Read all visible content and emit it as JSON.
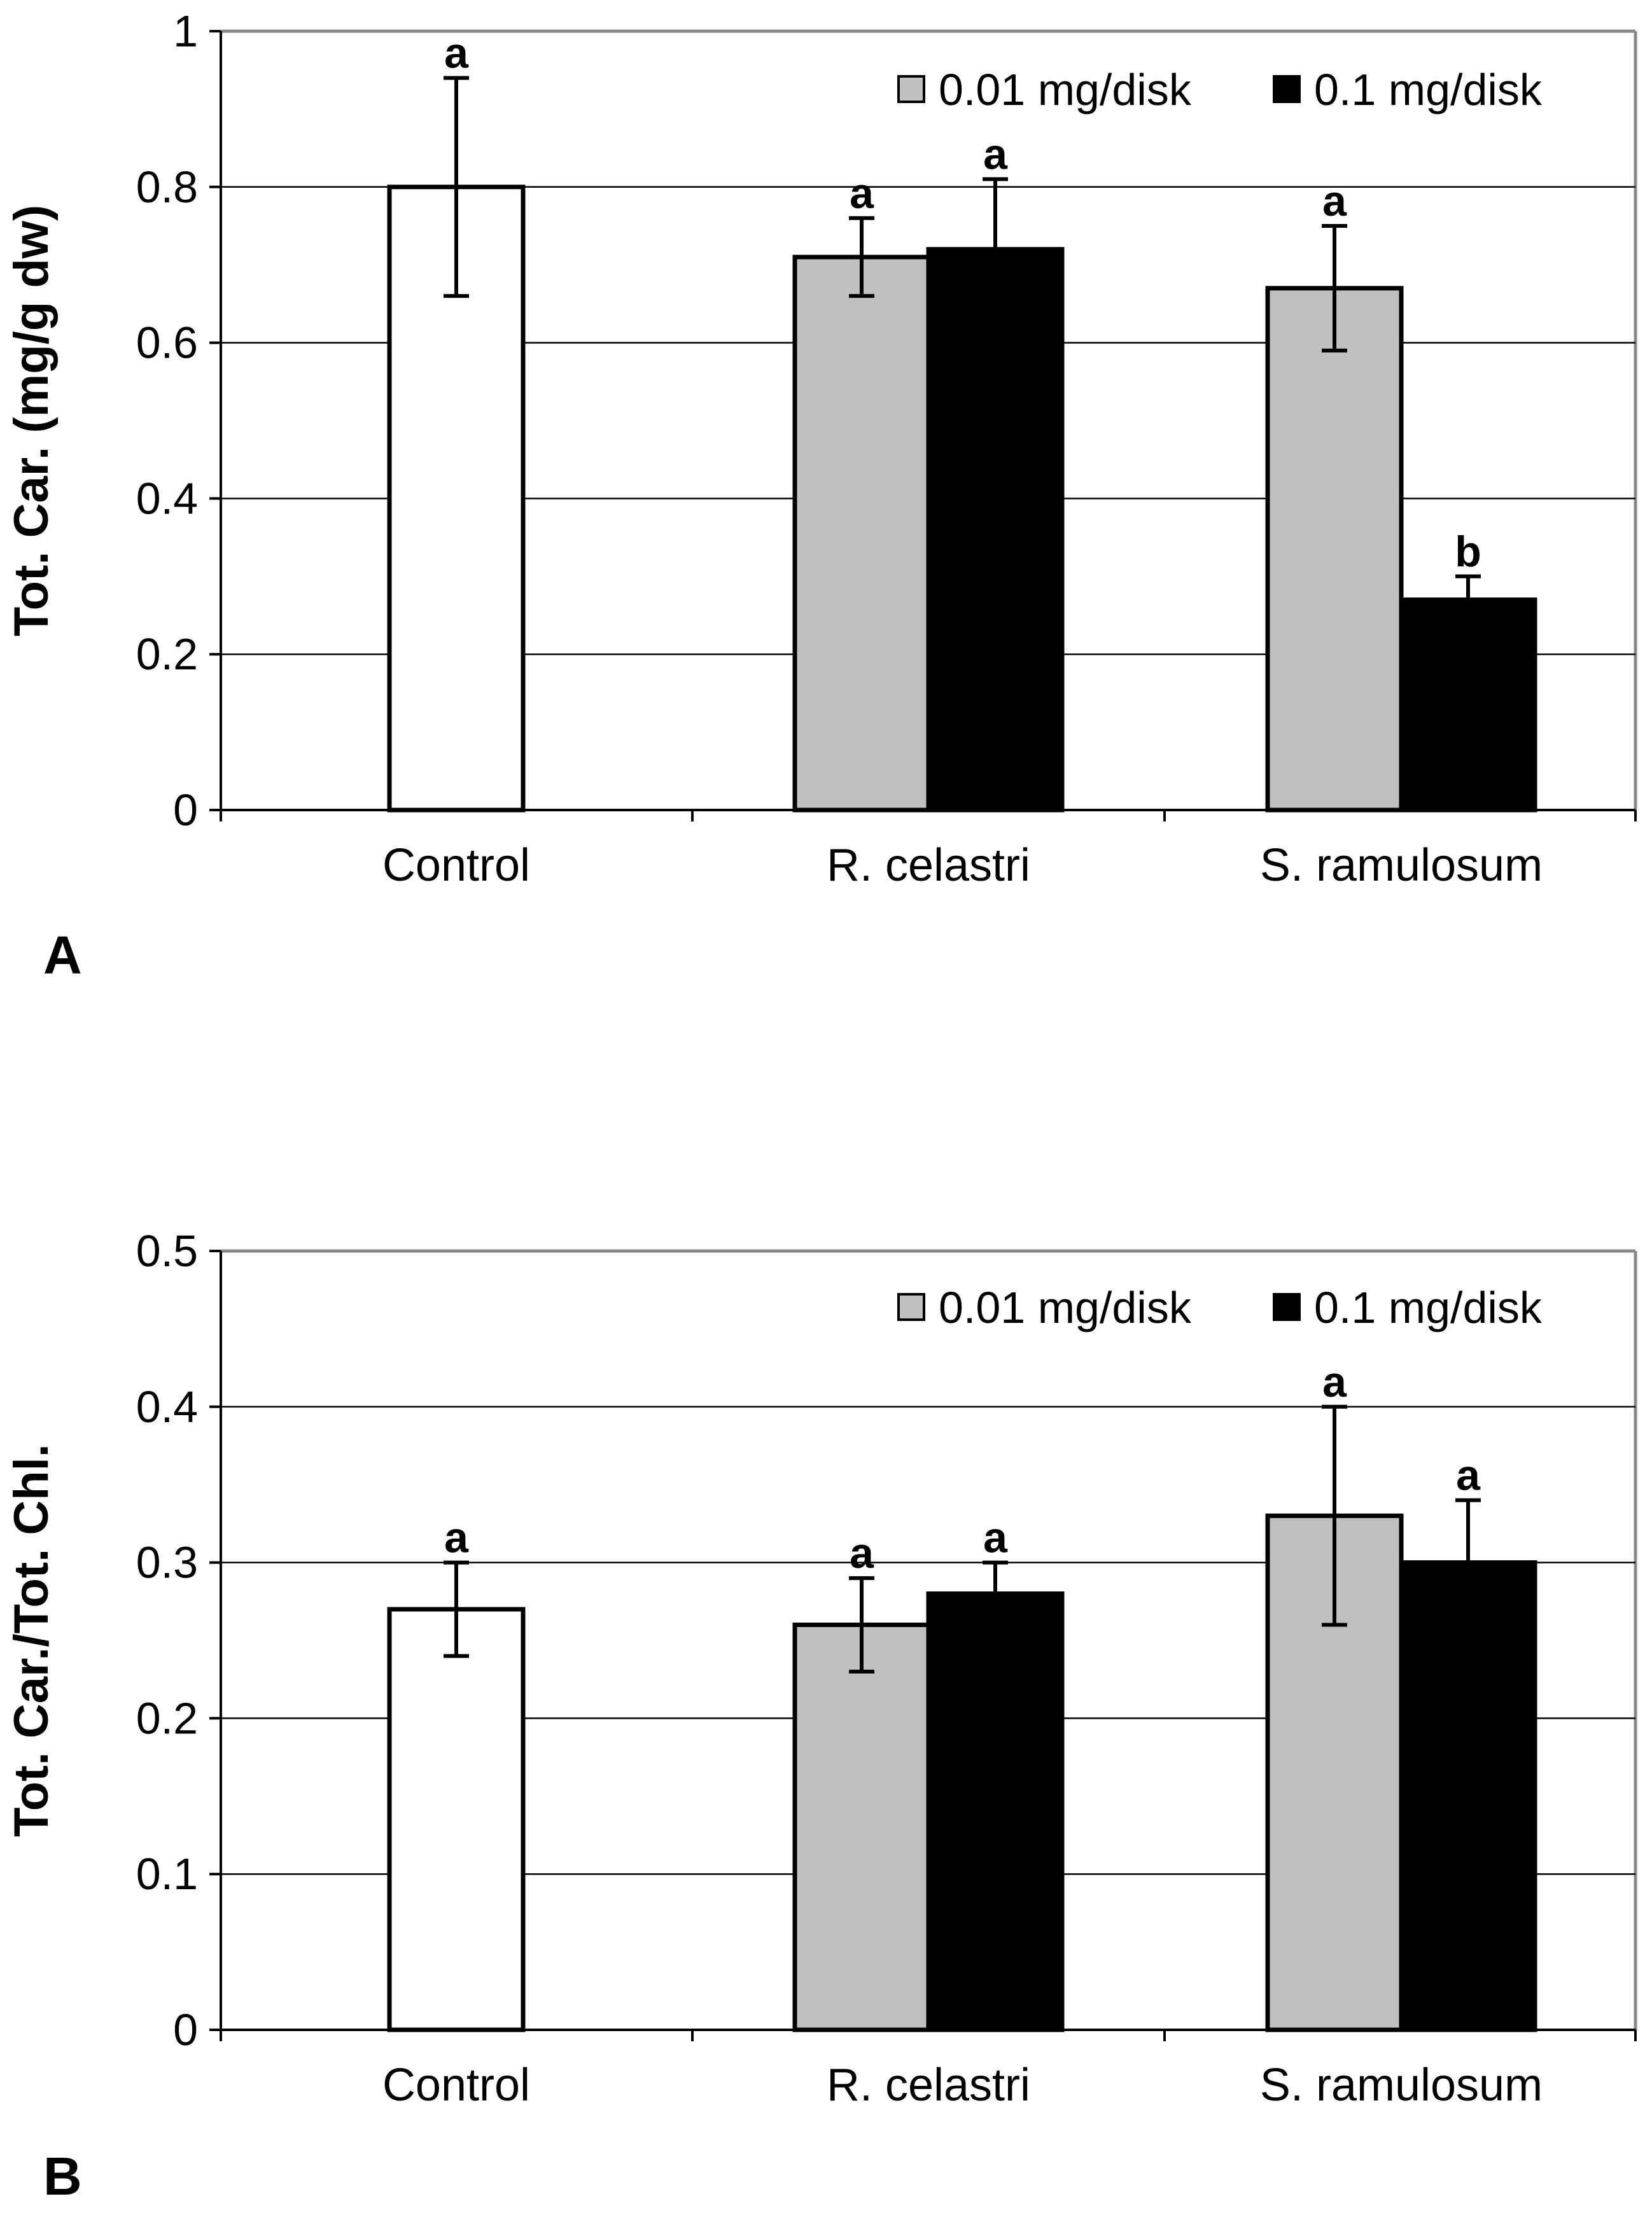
{
  "chart_data": [
    {
      "type": "bar",
      "panel_label": "A",
      "title": "",
      "xlabel": "",
      "ylabel": "Tot. Car. (mg/g dw)",
      "ylim": [
        0,
        1
      ],
      "yticks": [
        "0",
        "0.2",
        "0.4",
        "0.6",
        "0.8",
        "1"
      ],
      "ytick_values": [
        0,
        0.2,
        0.4,
        0.6,
        0.8,
        1
      ],
      "grid": true,
      "legend_position": "top-right",
      "categories": [
        "Control",
        "R. celastri",
        "S. ramulosum"
      ],
      "series": [
        {
          "name": "Control",
          "legend": false,
          "color": "#ffffff",
          "values": [
            0.8,
            null,
            null
          ],
          "errors": [
            0.14,
            null,
            null
          ],
          "letters": [
            "a",
            null,
            null
          ]
        },
        {
          "name": "0.01 mg/disk",
          "legend": true,
          "color": "#c0c0c0",
          "values": [
            null,
            0.71,
            0.67
          ],
          "errors": [
            null,
            0.05,
            0.08
          ],
          "letters": [
            null,
            "a",
            "a"
          ]
        },
        {
          "name": "0.1 mg/disk",
          "legend": true,
          "color": "#000000",
          "values": [
            null,
            0.72,
            0.27
          ],
          "errors": [
            null,
            0.09,
            0.03
          ],
          "letters": [
            null,
            "a",
            "b"
          ]
        }
      ]
    },
    {
      "type": "bar",
      "panel_label": "B",
      "title": "",
      "xlabel": "",
      "ylabel": "Tot. Car./Tot. Chl.",
      "ylim": [
        0,
        0.5
      ],
      "yticks": [
        "0",
        "0.1",
        "0.2",
        "0.3",
        "0.4",
        "0.5"
      ],
      "ytick_values": [
        0,
        0.1,
        0.2,
        0.3,
        0.4,
        0.5
      ],
      "grid": true,
      "legend_position": "top-right",
      "categories": [
        "Control",
        "R. celastri",
        "S. ramulosum"
      ],
      "series": [
        {
          "name": "Control",
          "legend": false,
          "color": "#ffffff",
          "values": [
            0.27,
            null,
            null
          ],
          "errors": [
            0.03,
            null,
            null
          ],
          "letters": [
            "a",
            null,
            null
          ]
        },
        {
          "name": "0.01 mg/disk",
          "legend": true,
          "color": "#c0c0c0",
          "values": [
            null,
            0.26,
            0.33
          ],
          "errors": [
            null,
            0.03,
            0.07
          ],
          "letters": [
            null,
            "a",
            "a"
          ]
        },
        {
          "name": "0.1 mg/disk",
          "legend": true,
          "color": "#000000",
          "values": [
            null,
            0.28,
            0.3
          ],
          "errors": [
            null,
            0.02,
            0.04
          ],
          "letters": [
            null,
            "a",
            "a"
          ]
        }
      ]
    }
  ]
}
